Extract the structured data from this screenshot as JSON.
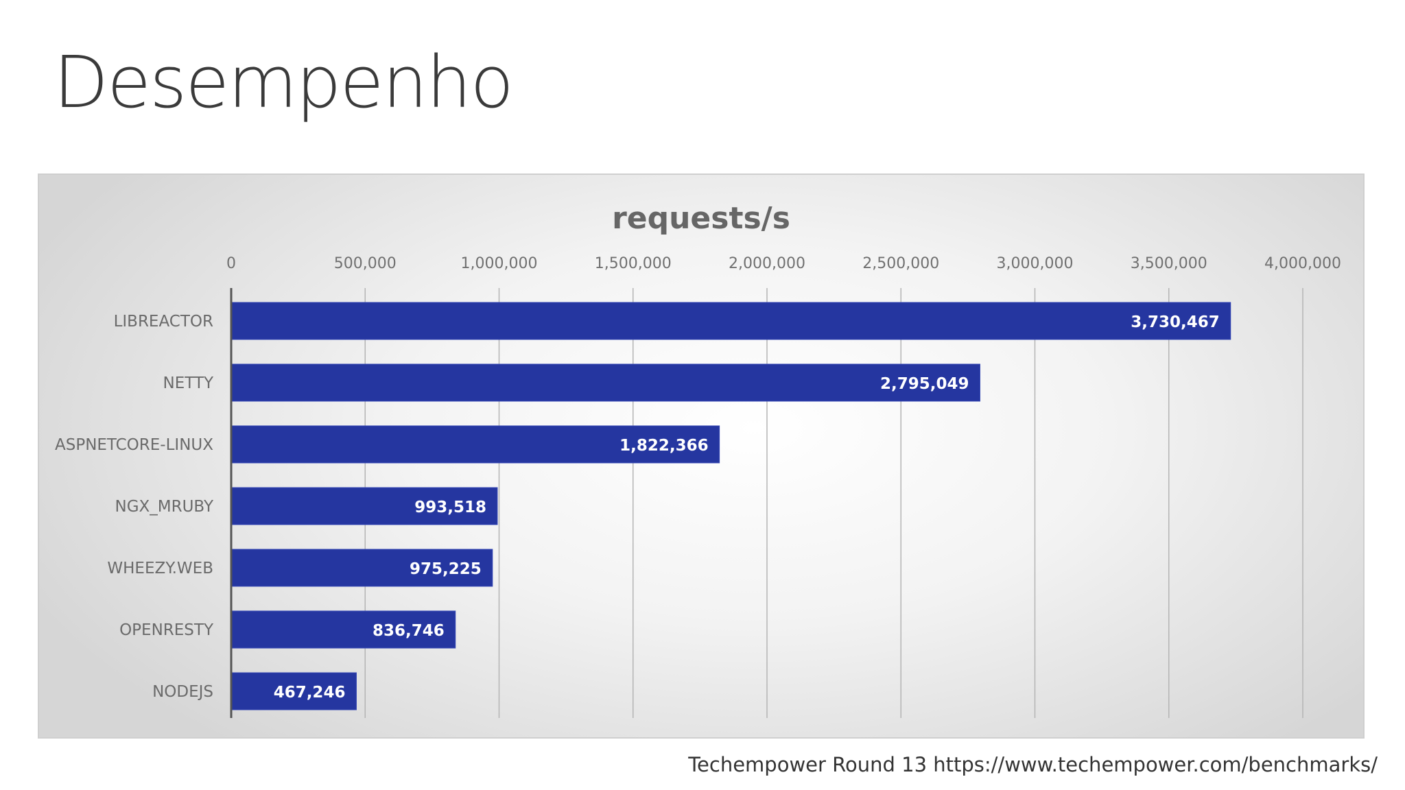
{
  "slide": {
    "title": "Desempenho",
    "source": "Techempower Round 13 https://www.techempower.com/benchmarks/"
  },
  "colors": {
    "bar": "#2536A0",
    "bar_highlight": "#3446B4",
    "grid": "#b4b4b4",
    "axis": "#555555"
  },
  "chart_data": {
    "type": "bar",
    "orientation": "horizontal",
    "title": "requests/s",
    "xlabel": "",
    "ylabel": "",
    "xlim": [
      0,
      4000000
    ],
    "ticks": [
      0,
      500000,
      1000000,
      1500000,
      2000000,
      2500000,
      3000000,
      3500000,
      4000000
    ],
    "tick_labels": [
      "0",
      "500,000",
      "1,000,000",
      "1,500,000",
      "2,000,000",
      "2,500,000",
      "3,000,000",
      "3,500,000",
      "4,000,000"
    ],
    "categories": [
      "LIBREACTOR",
      "NETTY",
      "ASPNETCORE-LINUX",
      "NGX_MRUBY",
      "WHEEZY.WEB",
      "OPENRESTY",
      "NODEJS"
    ],
    "values": [
      3730467,
      2795049,
      1822366,
      993518,
      975225,
      836746,
      467246
    ],
    "value_labels": [
      "3,730,467",
      "2,795,049",
      "1,822,366",
      "993,518",
      "975,225",
      "836,746",
      "467,246"
    ],
    "grid": true,
    "tick_position": "top",
    "legend": "none"
  }
}
